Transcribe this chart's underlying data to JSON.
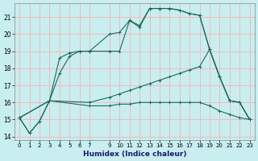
{
  "xlabel": "Humidex (Indice chaleur)",
  "background_color": "#c8eef0",
  "grid_color": "#f5b8b8",
  "line_color": "#1a6b5a",
  "xlim": [
    -0.5,
    23.5
  ],
  "ylim": [
    13.8,
    21.8
  ],
  "xticks": [
    0,
    1,
    2,
    3,
    4,
    5,
    6,
    7,
    9,
    10,
    11,
    12,
    13,
    14,
    15,
    16,
    17,
    18,
    19,
    20,
    21,
    22,
    23
  ],
  "yticks": [
    14,
    15,
    16,
    17,
    18,
    19,
    20,
    21
  ],
  "curves": [
    {
      "x": [
        0,
        1,
        2,
        3,
        4,
        5,
        6,
        7,
        9,
        10,
        11,
        12,
        13,
        14,
        15,
        16,
        17,
        18,
        19,
        20,
        21,
        22,
        23
      ],
      "y": [
        15.1,
        14.2,
        14.9,
        16.1,
        18.6,
        18.9,
        19.0,
        19.0,
        20.0,
        20.1,
        20.8,
        20.4,
        21.5,
        21.5,
        21.5,
        21.4,
        21.2,
        21.1,
        19.1,
        17.5,
        16.1,
        16.0,
        15.0
      ]
    },
    {
      "x": [
        0,
        1,
        2,
        3,
        4,
        5,
        6,
        7,
        9,
        10,
        11,
        12,
        13,
        14,
        15,
        16,
        17,
        18,
        19,
        20,
        21,
        22,
        23
      ],
      "y": [
        15.1,
        14.2,
        14.9,
        16.1,
        17.7,
        18.7,
        19.0,
        19.0,
        19.0,
        19.0,
        20.8,
        20.5,
        21.5,
        21.5,
        21.5,
        21.4,
        21.2,
        21.1,
        19.1,
        17.5,
        16.1,
        16.0,
        15.0
      ]
    },
    {
      "x": [
        0,
        3,
        7,
        9,
        10,
        11,
        12,
        13,
        14,
        15,
        16,
        17,
        18,
        19,
        20,
        21,
        22,
        23
      ],
      "y": [
        15.1,
        16.1,
        16.0,
        16.3,
        16.5,
        16.7,
        16.9,
        17.1,
        17.3,
        17.5,
        17.7,
        17.9,
        18.1,
        19.1,
        17.5,
        16.1,
        16.0,
        15.0
      ]
    },
    {
      "x": [
        0,
        3,
        7,
        9,
        10,
        11,
        12,
        13,
        14,
        15,
        16,
        17,
        18,
        19,
        20,
        21,
        22,
        23
      ],
      "y": [
        15.1,
        16.1,
        15.8,
        15.8,
        15.9,
        15.9,
        16.0,
        16.0,
        16.0,
        16.0,
        16.0,
        16.0,
        16.0,
        15.8,
        15.5,
        15.3,
        15.1,
        15.0
      ]
    }
  ]
}
